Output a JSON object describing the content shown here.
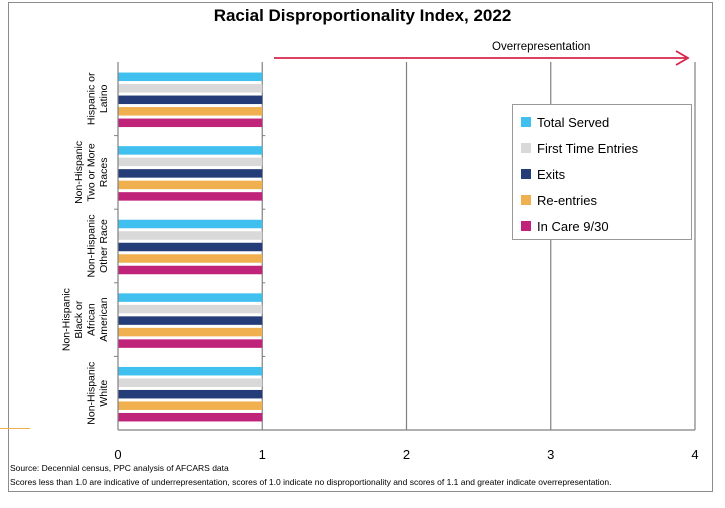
{
  "chart_data": {
    "type": "bar",
    "orientation": "horizontal",
    "title": "Racial Disproportionality Index, 2022",
    "annotation": "Overrepresentation",
    "categories": [
      "Hispanic or Latino",
      "Non-Hispanic Two or More Races",
      "Non-Hispanic Other Race",
      "Non-Hispanic Black or African American",
      "Non-Hispanic White"
    ],
    "category_lines": [
      [
        "Hispanic or",
        "Latino"
      ],
      [
        "Non-Hispanic",
        "Two or More",
        "Races"
      ],
      [
        "Non-Hispanic",
        "Other Race"
      ],
      [
        "Non-Hispanic",
        "Black or",
        "African",
        "American"
      ],
      [
        "Non-Hispanic",
        "White"
      ]
    ],
    "series": [
      {
        "name": "Total Served",
        "color": "#3fc0ee",
        "values": [
          1,
          1,
          1,
          1,
          1
        ]
      },
      {
        "name": "First Time Entries",
        "color": "#d9d9d9",
        "values": [
          1,
          1,
          1,
          1,
          1
        ]
      },
      {
        "name": "Exits",
        "color": "#243c78",
        "values": [
          1,
          1,
          1,
          1,
          1
        ]
      },
      {
        "name": "Re-entries",
        "color": "#f0b050",
        "values": [
          1,
          1,
          1,
          1,
          1
        ]
      },
      {
        "name": "In Care 9/30",
        "color": "#c0237a",
        "values": [
          1,
          1,
          1,
          1,
          1
        ]
      }
    ],
    "xlim": [
      0,
      4
    ],
    "xticks": [
      "0",
      "1",
      "2",
      "3",
      "4"
    ],
    "grid": "vertical major",
    "legend": "right"
  },
  "source_note": "Source: Decennial census, PPC analysis of AFCARS data",
  "footnote": "Scores less than 1.0 are indicative of underrepresentation, scores of 1.0 indicate no disproportionality and scores of 1.1 and greater indicate overrepresentation.",
  "colors": {
    "arrow": "#d6264a",
    "grid": "#808080"
  }
}
